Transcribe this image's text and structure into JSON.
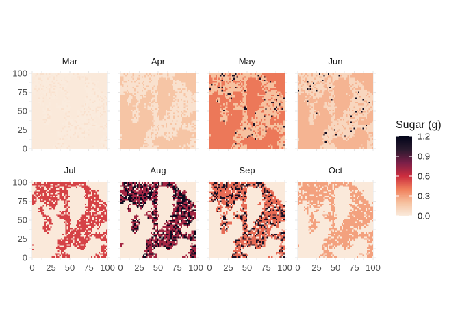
{
  "chart_data": {
    "type": "heatmap",
    "layout": "faceted small multiples, 2 rows x 4 columns",
    "x": {
      "min": 0,
      "max": 100,
      "ticks": [
        0,
        25,
        50,
        75,
        100
      ]
    },
    "y": {
      "min": 0,
      "max": 100,
      "ticks": [
        0,
        25,
        50,
        75,
        100
      ]
    },
    "grid": "on",
    "legend": {
      "title": "Sugar (g)",
      "placement": "right",
      "min": 0.0,
      "max": 1.2,
      "ticks": [
        "0.0",
        "0.3",
        "0.6",
        "0.9",
        "1.2"
      ],
      "colors": [
        "#faebdd",
        "#f6c19f",
        "#f0805c",
        "#cc2d3e",
        "#7a1f48",
        "#2a1a2e",
        "#03051a"
      ]
    },
    "facets": [
      {
        "label": "Mar",
        "base_sugar": 0.01,
        "patch_sugar": 0.0,
        "hot_fraction": 0.0,
        "hot_sugar": 0.0
      },
      {
        "label": "Apr",
        "base_sugar": 0.18,
        "patch_sugar": 0.05,
        "hot_fraction": 0.0,
        "hot_sugar": 0.0
      },
      {
        "label": "May",
        "base_sugar": 0.42,
        "patch_sugar": 0.2,
        "hot_fraction": 0.05,
        "hot_sugar": 1.1
      },
      {
        "label": "Jun",
        "base_sugar": 0.24,
        "patch_sugar": 0.1,
        "hot_fraction": 0.03,
        "hot_sugar": 1.15
      },
      {
        "label": "Jul",
        "base_sugar": 0.01,
        "patch_sugar": 0.55,
        "hot_fraction": 0.0,
        "hot_sugar": 0.0
      },
      {
        "label": "Aug",
        "base_sugar": 0.01,
        "patch_sugar": 0.7,
        "hot_fraction": 0.35,
        "hot_sugar": 1.15
      },
      {
        "label": "Sep",
        "base_sugar": 0.01,
        "patch_sugar": 0.45,
        "hot_fraction": 0.25,
        "hot_sugar": 1.1
      },
      {
        "label": "Oct",
        "base_sugar": 0.01,
        "patch_sugar": 0.3,
        "hot_fraction": 0.0,
        "hot_sugar": 0.0
      }
    ]
  }
}
